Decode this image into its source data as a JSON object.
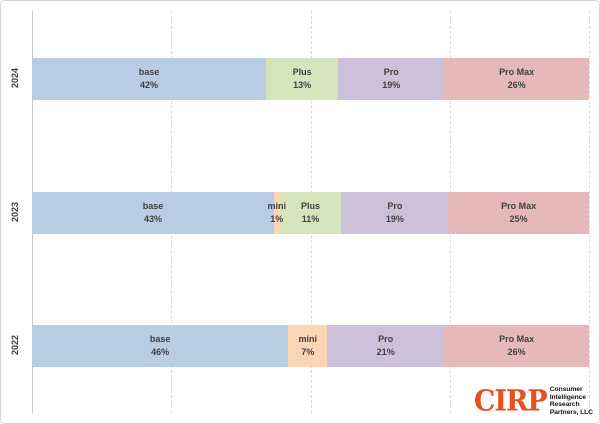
{
  "chart_data": {
    "type": "bar",
    "variant": "horizontal-stacked-100pct",
    "title": "",
    "xlabel": "",
    "ylabel": "",
    "unit": "%",
    "grid": "vertical-dashed-every-25pct",
    "legend_position": "none (labels inside segments)",
    "categories": [
      "2024",
      "2023",
      "2022"
    ],
    "colors": {
      "base": "#b8cce4",
      "mini": "#fcd5b5",
      "Plus": "#d6e4bc",
      "Pro": "#ccc0da",
      "Pro Max": "#e6b9b8"
    },
    "rows": [
      {
        "year": "2024",
        "segments": [
          {
            "label": "base",
            "value": 42,
            "value_label": "42%"
          },
          {
            "label": "Plus",
            "value": 13,
            "value_label": "13%"
          },
          {
            "label": "Pro",
            "value": 19,
            "value_label": "19%"
          },
          {
            "label": "Pro Max",
            "value": 26,
            "value_label": "26%"
          }
        ]
      },
      {
        "year": "2023",
        "segments": [
          {
            "label": "base",
            "value": 43,
            "value_label": "43%"
          },
          {
            "label": "mini",
            "value": 1,
            "value_label": "1%"
          },
          {
            "label": "Plus",
            "value": 11,
            "value_label": "11%"
          },
          {
            "label": "Pro",
            "value": 19,
            "value_label": "19%"
          },
          {
            "label": "Pro Max",
            "value": 25,
            "value_label": "25%"
          }
        ]
      },
      {
        "year": "2022",
        "segments": [
          {
            "label": "base",
            "value": 46,
            "value_label": "46%"
          },
          {
            "label": "mini",
            "value": 7,
            "value_label": "7%"
          },
          {
            "label": "Pro",
            "value": 21,
            "value_label": "21%"
          },
          {
            "label": "Pro Max",
            "value": 26,
            "value_label": "26%"
          }
        ]
      }
    ]
  },
  "branding": {
    "wordmark": "CIRP",
    "wordmark_color": "#e8511d",
    "lines": [
      "Consumer",
      "Intelligence",
      "Research",
      "Partners, LLC"
    ]
  }
}
